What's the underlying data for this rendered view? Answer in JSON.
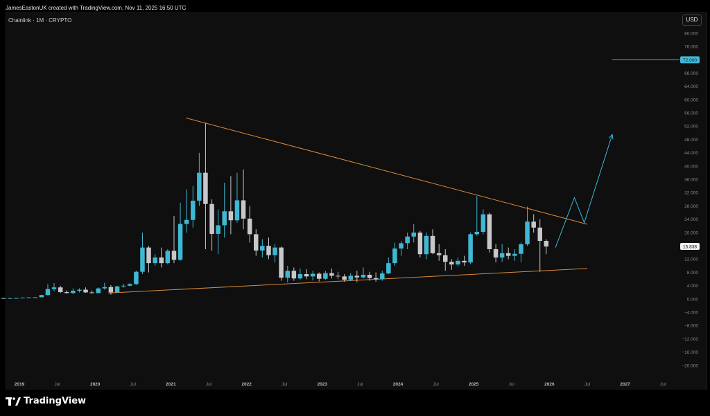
{
  "header": {
    "credit": "JamesEastonUK created with TradingView.com, Nov 11, 2025 16:50 UTC"
  },
  "symbol": {
    "label": "Chainlink · 1M · CRYPTO"
  },
  "currency_button": {
    "label": "USD"
  },
  "footer": {
    "brand": "TradingView"
  },
  "colors": {
    "bull": "#3fb8d4",
    "bear": "#c8c8cc",
    "trendline": "#d9893c",
    "projection": "#3fb8d4",
    "background": "#0f0f0f"
  },
  "chart_data": {
    "type": "candlestick",
    "title": "Chainlink · 1M · CRYPTO",
    "ylim": [
      -20,
      80
    ],
    "y_ticks": [
      "80.000",
      "76.000",
      "72.000",
      "68.000",
      "64.000",
      "60.000",
      "56.000",
      "52.000",
      "48.000",
      "44.000",
      "40.000",
      "36.000",
      "32.000",
      "28.000",
      "24.000",
      "20.000",
      "16.000",
      "12.000",
      "8.000",
      "4.000",
      "0.000",
      "−4.000",
      "−8.000",
      "−12.000",
      "−16.000",
      "−20.000"
    ],
    "x_ticks": [
      {
        "t": 2019.0,
        "label": "2019",
        "year": true
      },
      {
        "t": 2019.5,
        "label": "Jul",
        "year": false
      },
      {
        "t": 2020.0,
        "label": "2020",
        "year": true
      },
      {
        "t": 2020.5,
        "label": "Jul",
        "year": false
      },
      {
        "t": 2021.0,
        "label": "2021",
        "year": true
      },
      {
        "t": 2021.5,
        "label": "Jul",
        "year": false
      },
      {
        "t": 2022.0,
        "label": "2022",
        "year": true
      },
      {
        "t": 2022.5,
        "label": "Jul",
        "year": false
      },
      {
        "t": 2023.0,
        "label": "2023",
        "year": true
      },
      {
        "t": 2023.5,
        "label": "Jul",
        "year": false
      },
      {
        "t": 2024.0,
        "label": "2024",
        "year": true
      },
      {
        "t": 2024.5,
        "label": "Jul",
        "year": false
      },
      {
        "t": 2025.0,
        "label": "2025",
        "year": true
      },
      {
        "t": 2025.5,
        "label": "Jul",
        "year": false
      },
      {
        "t": 2026.0,
        "label": "2026",
        "year": true
      },
      {
        "t": 2026.5,
        "label": "Jul",
        "year": false
      },
      {
        "t": 2027.0,
        "label": "2027",
        "year": true
      },
      {
        "t": 2027.5,
        "label": "Jul",
        "year": false
      }
    ],
    "candles": [
      {
        "t": 2018.79,
        "o": 0.3,
        "h": 0.35,
        "l": 0.2,
        "c": 0.25
      },
      {
        "t": 2018.875,
        "o": 0.25,
        "h": 0.3,
        "l": 0.2,
        "c": 0.28
      },
      {
        "t": 2018.958,
        "o": 0.28,
        "h": 0.35,
        "l": 0.22,
        "c": 0.32
      },
      {
        "t": 2019.042,
        "o": 0.32,
        "h": 0.45,
        "l": 0.3,
        "c": 0.42
      },
      {
        "t": 2019.125,
        "o": 0.42,
        "h": 0.55,
        "l": 0.38,
        "c": 0.48
      },
      {
        "t": 2019.208,
        "o": 0.48,
        "h": 0.6,
        "l": 0.44,
        "c": 0.52
      },
      {
        "t": 2019.292,
        "o": 0.52,
        "h": 1.3,
        "l": 0.5,
        "c": 1.2
      },
      {
        "t": 2019.375,
        "o": 1.2,
        "h": 4.5,
        "l": 1.1,
        "c": 3.0
      },
      {
        "t": 2019.458,
        "o": 3.0,
        "h": 4.8,
        "l": 2.4,
        "c": 3.5
      },
      {
        "t": 2019.542,
        "o": 3.5,
        "h": 4.0,
        "l": 1.8,
        "c": 2.1
      },
      {
        "t": 2019.625,
        "o": 2.1,
        "h": 2.6,
        "l": 1.6,
        "c": 1.8
      },
      {
        "t": 2019.708,
        "o": 1.8,
        "h": 3.2,
        "l": 1.5,
        "c": 2.5
      },
      {
        "t": 2019.792,
        "o": 2.5,
        "h": 3.2,
        "l": 2.0,
        "c": 2.8
      },
      {
        "t": 2019.875,
        "o": 2.8,
        "h": 3.5,
        "l": 1.9,
        "c": 2.0
      },
      {
        "t": 2019.958,
        "o": 2.0,
        "h": 2.6,
        "l": 1.6,
        "c": 1.8
      },
      {
        "t": 2020.042,
        "o": 1.8,
        "h": 3.5,
        "l": 1.7,
        "c": 3.2
      },
      {
        "t": 2020.125,
        "o": 3.2,
        "h": 4.9,
        "l": 2.8,
        "c": 3.6
      },
      {
        "t": 2020.208,
        "o": 3.6,
        "h": 4.2,
        "l": 1.3,
        "c": 2.0
      },
      {
        "t": 2020.292,
        "o": 2.0,
        "h": 4.0,
        "l": 1.9,
        "c": 3.8
      },
      {
        "t": 2020.375,
        "o": 3.8,
        "h": 4.6,
        "l": 3.4,
        "c": 4.0
      },
      {
        "t": 2020.458,
        "o": 4.0,
        "h": 4.8,
        "l": 3.8,
        "c": 4.5
      },
      {
        "t": 2020.542,
        "o": 4.5,
        "h": 8.5,
        "l": 4.2,
        "c": 8.2
      },
      {
        "t": 2020.625,
        "o": 8.2,
        "h": 20.0,
        "l": 7.5,
        "c": 15.5
      },
      {
        "t": 2020.708,
        "o": 15.5,
        "h": 16.0,
        "l": 8.0,
        "c": 10.8
      },
      {
        "t": 2020.792,
        "o": 10.8,
        "h": 13.5,
        "l": 10.0,
        "c": 12.5
      },
      {
        "t": 2020.875,
        "o": 12.5,
        "h": 15.5,
        "l": 9.5,
        "c": 10.8
      },
      {
        "t": 2020.958,
        "o": 10.8,
        "h": 15.0,
        "l": 10.5,
        "c": 14.5
      },
      {
        "t": 2021.042,
        "o": 14.5,
        "h": 25.0,
        "l": 10.8,
        "c": 11.8
      },
      {
        "t": 2021.125,
        "o": 11.8,
        "h": 29.0,
        "l": 11.5,
        "c": 22.6
      },
      {
        "t": 2021.208,
        "o": 22.6,
        "h": 33.0,
        "l": 20.0,
        "c": 23.8
      },
      {
        "t": 2021.292,
        "o": 23.8,
        "h": 34.0,
        "l": 21.5,
        "c": 29.6
      },
      {
        "t": 2021.375,
        "o": 29.6,
        "h": 44.0,
        "l": 28.0,
        "c": 38.0
      },
      {
        "t": 2021.458,
        "o": 38.0,
        "h": 53.0,
        "l": 15.0,
        "c": 28.6
      },
      {
        "t": 2021.542,
        "o": 28.6,
        "h": 30.0,
        "l": 14.5,
        "c": 19.6
      },
      {
        "t": 2021.625,
        "o": 19.6,
        "h": 27.0,
        "l": 13.5,
        "c": 22.2
      },
      {
        "t": 2021.708,
        "o": 22.2,
        "h": 35.0,
        "l": 18.5,
        "c": 26.4
      },
      {
        "t": 2021.792,
        "o": 26.4,
        "h": 37.0,
        "l": 19.5,
        "c": 23.7
      },
      {
        "t": 2021.875,
        "o": 23.7,
        "h": 38.0,
        "l": 23.0,
        "c": 29.7
      },
      {
        "t": 2021.958,
        "o": 29.7,
        "h": 39.0,
        "l": 21.0,
        "c": 24.2
      },
      {
        "t": 2022.042,
        "o": 24.2,
        "h": 28.0,
        "l": 17.0,
        "c": 19.5
      },
      {
        "t": 2022.125,
        "o": 19.5,
        "h": 21.0,
        "l": 13.0,
        "c": 14.6
      },
      {
        "t": 2022.208,
        "o": 14.6,
        "h": 18.0,
        "l": 12.5,
        "c": 16.0
      },
      {
        "t": 2022.292,
        "o": 16.0,
        "h": 18.5,
        "l": 12.0,
        "c": 13.2
      },
      {
        "t": 2022.375,
        "o": 13.2,
        "h": 16.5,
        "l": 11.0,
        "c": 15.5
      },
      {
        "t": 2022.458,
        "o": 15.5,
        "h": 15.8,
        "l": 5.5,
        "c": 6.4
      },
      {
        "t": 2022.542,
        "o": 6.4,
        "h": 10.0,
        "l": 5.0,
        "c": 8.5
      },
      {
        "t": 2022.625,
        "o": 8.5,
        "h": 9.5,
        "l": 5.5,
        "c": 6.2
      },
      {
        "t": 2022.708,
        "o": 6.2,
        "h": 9.2,
        "l": 5.8,
        "c": 7.5
      },
      {
        "t": 2022.792,
        "o": 7.5,
        "h": 9.0,
        "l": 6.0,
        "c": 6.8
      },
      {
        "t": 2022.875,
        "o": 6.8,
        "h": 8.5,
        "l": 5.6,
        "c": 7.6
      },
      {
        "t": 2022.958,
        "o": 7.6,
        "h": 8.0,
        "l": 5.3,
        "c": 6.1
      },
      {
        "t": 2023.042,
        "o": 6.1,
        "h": 8.5,
        "l": 5.8,
        "c": 7.8
      },
      {
        "t": 2023.125,
        "o": 7.8,
        "h": 9.2,
        "l": 6.2,
        "c": 7.0
      },
      {
        "t": 2023.208,
        "o": 7.0,
        "h": 8.2,
        "l": 6.0,
        "c": 6.8
      },
      {
        "t": 2023.292,
        "o": 6.8,
        "h": 7.5,
        "l": 5.2,
        "c": 5.8
      },
      {
        "t": 2023.375,
        "o": 5.8,
        "h": 7.8,
        "l": 5.4,
        "c": 7.0
      },
      {
        "t": 2023.458,
        "o": 7.0,
        "h": 8.5,
        "l": 5.1,
        "c": 6.5
      },
      {
        "t": 2023.542,
        "o": 6.5,
        "h": 9.5,
        "l": 6.2,
        "c": 7.3
      },
      {
        "t": 2023.625,
        "o": 7.3,
        "h": 8.2,
        "l": 5.5,
        "c": 6.3
      },
      {
        "t": 2023.708,
        "o": 6.3,
        "h": 8.0,
        "l": 5.2,
        "c": 6.0
      },
      {
        "t": 2023.792,
        "o": 6.0,
        "h": 8.5,
        "l": 5.5,
        "c": 7.7
      },
      {
        "t": 2023.875,
        "o": 7.7,
        "h": 12.5,
        "l": 7.5,
        "c": 10.8
      },
      {
        "t": 2023.958,
        "o": 10.8,
        "h": 17.0,
        "l": 10.0,
        "c": 15.2
      },
      {
        "t": 2024.042,
        "o": 15.2,
        "h": 17.5,
        "l": 13.0,
        "c": 16.8
      },
      {
        "t": 2024.125,
        "o": 16.8,
        "h": 20.0,
        "l": 15.0,
        "c": 18.8
      },
      {
        "t": 2024.208,
        "o": 18.8,
        "h": 22.5,
        "l": 17.0,
        "c": 20.0
      },
      {
        "t": 2024.292,
        "o": 20.0,
        "h": 20.5,
        "l": 12.5,
        "c": 13.5
      },
      {
        "t": 2024.375,
        "o": 13.5,
        "h": 20.0,
        "l": 12.0,
        "c": 19.0
      },
      {
        "t": 2024.458,
        "o": 19.0,
        "h": 21.0,
        "l": 13.5,
        "c": 13.8
      },
      {
        "t": 2024.542,
        "o": 13.8,
        "h": 16.5,
        "l": 11.5,
        "c": 13.2
      },
      {
        "t": 2024.625,
        "o": 13.2,
        "h": 15.0,
        "l": 8.5,
        "c": 11.2
      },
      {
        "t": 2024.708,
        "o": 11.2,
        "h": 12.0,
        "l": 8.8,
        "c": 10.4
      },
      {
        "t": 2024.792,
        "o": 10.4,
        "h": 12.5,
        "l": 9.8,
        "c": 11.5
      },
      {
        "t": 2024.875,
        "o": 11.5,
        "h": 13.0,
        "l": 10.0,
        "c": 11.0
      },
      {
        "t": 2024.958,
        "o": 11.0,
        "h": 20.0,
        "l": 10.5,
        "c": 19.5
      },
      {
        "t": 2025.042,
        "o": 19.5,
        "h": 31.0,
        "l": 19.0,
        "c": 20.2
      },
      {
        "t": 2025.125,
        "o": 20.2,
        "h": 27.0,
        "l": 19.5,
        "c": 25.5
      },
      {
        "t": 2025.208,
        "o": 25.5,
        "h": 26.0,
        "l": 14.0,
        "c": 15.0
      },
      {
        "t": 2025.292,
        "o": 15.0,
        "h": 16.5,
        "l": 11.0,
        "c": 12.5
      },
      {
        "t": 2025.375,
        "o": 12.5,
        "h": 16.5,
        "l": 11.2,
        "c": 13.8
      },
      {
        "t": 2025.458,
        "o": 13.8,
        "h": 15.5,
        "l": 12.0,
        "c": 13.0
      },
      {
        "t": 2025.542,
        "o": 13.0,
        "h": 15.0,
        "l": 11.5,
        "c": 13.6
      },
      {
        "t": 2025.625,
        "o": 13.6,
        "h": 17.0,
        "l": 11.0,
        "c": 16.5
      },
      {
        "t": 2025.708,
        "o": 16.5,
        "h": 27.8,
        "l": 16.0,
        "c": 23.3
      },
      {
        "t": 2025.792,
        "o": 23.3,
        "h": 25.5,
        "l": 20.0,
        "c": 21.5
      },
      {
        "t": 2025.875,
        "o": 21.5,
        "h": 24.0,
        "l": 8.2,
        "c": 17.5
      },
      {
        "t": 2025.958,
        "o": 17.5,
        "h": 18.0,
        "l": 13.5,
        "c": 15.8
      }
    ],
    "upper_trendline": [
      {
        "t": 2021.2,
        "y": 54.5
      },
      {
        "t": 2026.5,
        "y": 22.5
      }
    ],
    "lower_trendline": [
      {
        "t": 2020.17,
        "y": 1.8
      },
      {
        "t": 2026.5,
        "y": 9.2
      }
    ],
    "projection_path": [
      {
        "t": 2026.08,
        "y": 15.5
      },
      {
        "t": 2026.33,
        "y": 30.5
      },
      {
        "t": 2026.46,
        "y": 23.0
      },
      {
        "t": 2026.83,
        "y": 49.5
      }
    ],
    "target_line": {
      "t_start": 2026.83,
      "y": 72.0,
      "label": "72.000"
    },
    "current_price": {
      "y": 15.838,
      "label": "15.838"
    }
  }
}
